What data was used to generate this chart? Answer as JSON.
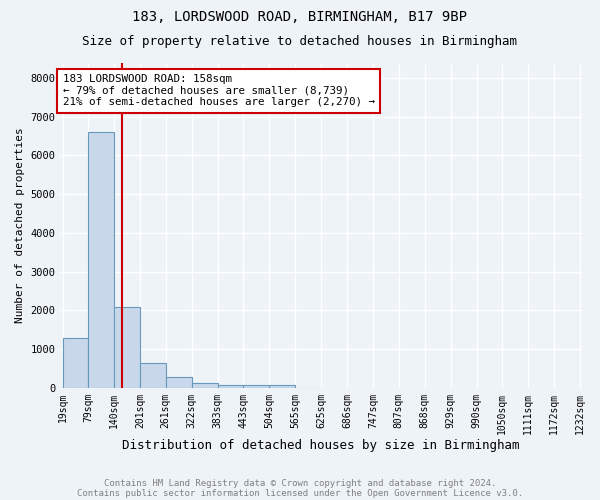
{
  "title": "183, LORDSWOOD ROAD, BIRMINGHAM, B17 9BP",
  "subtitle": "Size of property relative to detached houses in Birmingham",
  "xlabel": "Distribution of detached houses by size in Birmingham",
  "ylabel": "Number of detached properties",
  "footnote1": "Contains HM Land Registry data © Crown copyright and database right 2024.",
  "footnote2": "Contains public sector information licensed under the Open Government Licence v3.0.",
  "bin_edges": [
    19,
    79,
    140,
    201,
    261,
    322,
    383,
    443,
    504,
    565,
    625,
    686,
    747,
    807,
    868,
    929,
    990,
    1050,
    1111,
    1172,
    1232
  ],
  "bar_heights": [
    1300,
    6600,
    2100,
    650,
    280,
    120,
    80,
    75,
    65,
    10,
    0,
    0,
    0,
    0,
    0,
    0,
    0,
    0,
    0,
    0
  ],
  "bar_color": "#c8d8ea",
  "bar_edge_color": "#6699bb",
  "property_size": 158,
  "red_line_color": "#cc0000",
  "annotation_line1": "183 LORDSWOOD ROAD: 158sqm",
  "annotation_line2": "← 79% of detached houses are smaller (8,739)",
  "annotation_line3": "21% of semi-detached houses are larger (2,270) →",
  "annotation_box_color": "#cc0000",
  "ylim": [
    0,
    8400
  ],
  "yticks": [
    0,
    1000,
    2000,
    3000,
    4000,
    5000,
    6000,
    7000,
    8000
  ],
  "bg_color": "#eef3f8",
  "grid_color": "#ffffff",
  "title_fontsize": 10,
  "subtitle_fontsize": 9,
  "ylabel_fontsize": 8,
  "xlabel_fontsize": 9,
  "tick_fontsize": 7,
  "footnote_fontsize": 6.5
}
